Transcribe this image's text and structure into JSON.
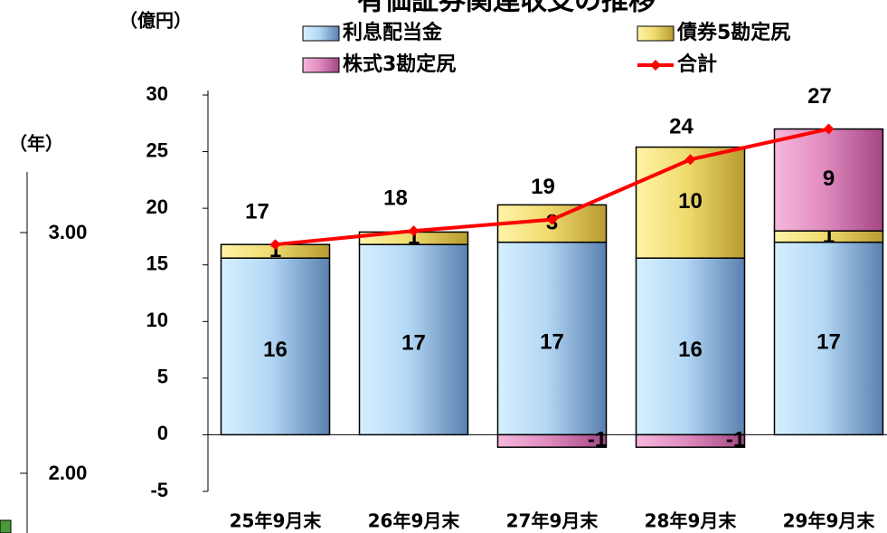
{
  "chart_data": {
    "type": "stacked_bar_line",
    "title": "有価証券関連収支の推移",
    "y_unit": "（億円）",
    "categories": [
      "25年9月末",
      "26年9月末",
      "27年9月末",
      "28年9月末",
      "29年9月末"
    ],
    "series": [
      {
        "name": "利息配当金",
        "color": "#8fb6e0",
        "values": [
          15.6,
          16.8,
          17.0,
          15.6,
          17.0
        ],
        "value_labels": [
          "16",
          "17",
          "17",
          "16",
          "17"
        ]
      },
      {
        "name": "債券5勘定尻",
        "color": "#e8d060",
        "values": [
          1.2,
          1.1,
          3.3,
          9.8,
          1.0
        ],
        "value_labels": [
          "1",
          "1",
          "3",
          "10",
          "1"
        ]
      },
      {
        "name": "株式3勘定尻",
        "color": "#d870b0",
        "values": [
          null,
          null,
          -1.1,
          -1.1,
          9.0
        ],
        "value_labels": [
          null,
          null,
          "-1",
          "-1",
          "9"
        ]
      },
      {
        "name": "合計",
        "type": "line",
        "color": "#ff0000",
        "values": [
          16.8,
          18.0,
          19.0,
          24.3,
          27.0
        ],
        "value_labels": [
          "17",
          "18",
          "19",
          "24",
          "27"
        ]
      }
    ],
    "ylim": [
      -5,
      30
    ],
    "yticks": [
      -5,
      0,
      5,
      10,
      15,
      20,
      25,
      30
    ],
    "left_axis": {
      "unit": "（年）",
      "ticks": [
        "3.00",
        "2.00"
      ]
    }
  }
}
